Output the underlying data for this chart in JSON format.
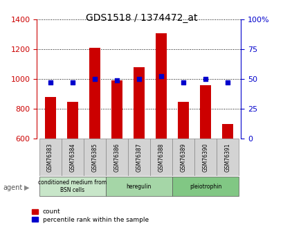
{
  "title": "GDS1518 / 1374472_at",
  "categories": [
    "GSM76383",
    "GSM76384",
    "GSM76385",
    "GSM76386",
    "GSM76387",
    "GSM76388",
    "GSM76389",
    "GSM76390",
    "GSM76391"
  ],
  "counts": [
    880,
    848,
    1210,
    990,
    1080,
    1305,
    848,
    958,
    700
  ],
  "percentiles": [
    47,
    47,
    50,
    49,
    50,
    52,
    47,
    50,
    47
  ],
  "ylim_left": [
    600,
    1400
  ],
  "ylim_right": [
    0,
    100
  ],
  "yticks_left": [
    600,
    800,
    1000,
    1200,
    1400
  ],
  "yticks_right": [
    0,
    25,
    50,
    75,
    100
  ],
  "bar_color": "#cc0000",
  "dot_color": "#0000cc",
  "bar_width": 0.5,
  "groups": [
    {
      "label": "conditioned medium from\nBSN cells",
      "start": 0,
      "end": 3,
      "color": "#c8e6c9"
    },
    {
      "label": "heregulin",
      "start": 3,
      "end": 6,
      "color": "#a5d6a7"
    },
    {
      "label": "pleiotrophin",
      "start": 6,
      "end": 9,
      "color": "#81c784"
    }
  ],
  "agent_label": "agent",
  "xlabel_color": "#333333",
  "left_axis_color": "#cc0000",
  "right_axis_color": "#0000cc",
  "background_color": "#ffffff",
  "plot_bg_color": "#ffffff",
  "grid_color": "#000000",
  "tick_label_color_left": "#cc0000",
  "tick_label_color_right": "#0000cc"
}
